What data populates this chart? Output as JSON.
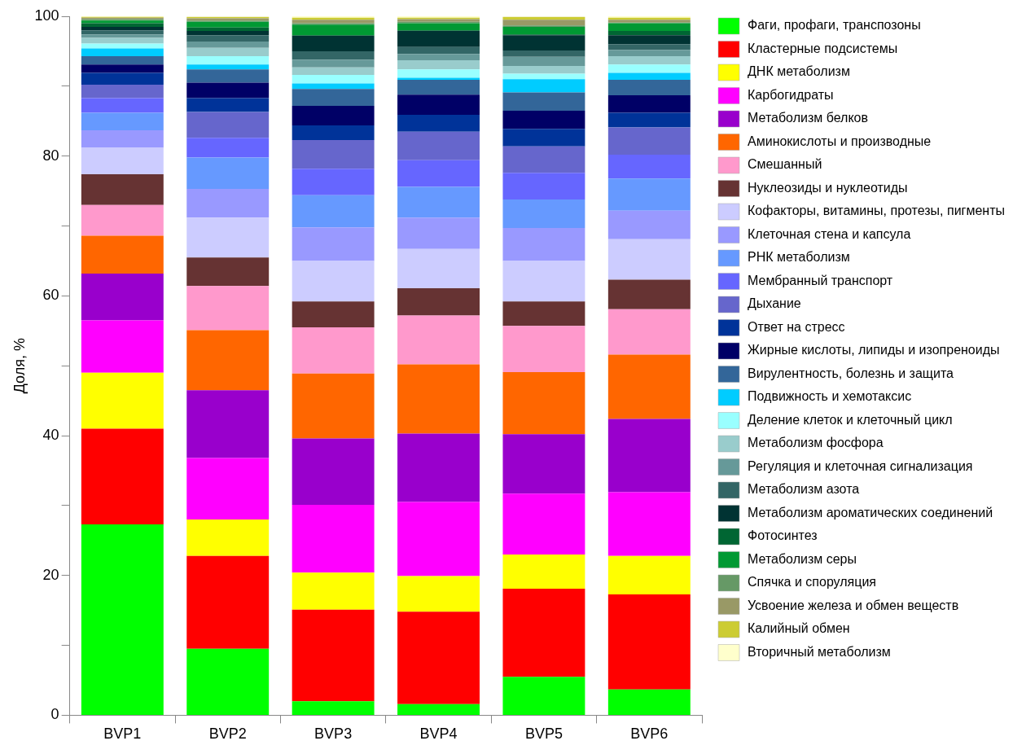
{
  "chart_data": {
    "type": "bar",
    "stacked": true,
    "ylabel": "Доля, %",
    "categories": [
      "BVP1",
      "BVP2",
      "BVP3",
      "BVP4",
      "BVP5",
      "BVP6"
    ],
    "ylim": [
      0,
      100
    ],
    "yticks": [
      0,
      {
        "value": 10,
        "label": null
      },
      20,
      {
        "value": 30,
        "label": null
      },
      40,
      {
        "value": 50,
        "label": null
      },
      60,
      {
        "value": 70,
        "label": null
      },
      80,
      {
        "value": 90,
        "label": null
      },
      100
    ],
    "grid": false,
    "legend": "right",
    "series": [
      {
        "name": "Фаги, профаги, транспозоны",
        "color": "#00ff00",
        "values": [
          27.3,
          9.5,
          2.0,
          1.6,
          5.5,
          3.7
        ]
      },
      {
        "name": "Кластерные подсистемы",
        "color": "#ff0000",
        "values": [
          13.7,
          13.3,
          13.1,
          13.2,
          12.6,
          13.6
        ]
      },
      {
        "name": "ДНК метаболизм",
        "color": "#ffff00",
        "values": [
          8.0,
          5.2,
          5.3,
          5.1,
          4.9,
          5.5
        ]
      },
      {
        "name": "Карбогидраты",
        "color": "#ff00ff",
        "values": [
          7.5,
          8.8,
          9.7,
          10.6,
          8.7,
          9.1
        ]
      },
      {
        "name": "Метаболизм белков",
        "color": "#9900cc",
        "values": [
          6.7,
          9.7,
          9.5,
          9.8,
          8.5,
          10.5
        ]
      },
      {
        "name": "Аминокислоты и производные",
        "color": "#ff6600",
        "values": [
          5.4,
          8.6,
          9.3,
          9.9,
          8.9,
          9.2
        ]
      },
      {
        "name": "Смешанный",
        "color": "#ff99cc",
        "values": [
          4.4,
          6.3,
          6.6,
          7.0,
          6.6,
          6.5
        ]
      },
      {
        "name": "Нуклеозиды и нуклеотиды",
        "color": "#663333",
        "values": [
          4.4,
          4.1,
          3.7,
          3.9,
          3.5,
          4.2
        ]
      },
      {
        "name": "Кофакторы, витамины, протезы, пигменты",
        "color": "#ccccff",
        "values": [
          3.8,
          5.7,
          5.8,
          5.6,
          5.8,
          5.8
        ]
      },
      {
        "name": "Клеточная стена и капсула",
        "color": "#9999ff",
        "values": [
          2.5,
          4.1,
          4.8,
          4.5,
          4.7,
          4.1
        ]
      },
      {
        "name": "РНК метаболизм",
        "color": "#6699ff",
        "values": [
          2.5,
          4.5,
          4.6,
          4.4,
          4.1,
          4.6
        ]
      },
      {
        "name": "Мембранный транспорт",
        "color": "#6666ff",
        "values": [
          2.1,
          2.8,
          3.8,
          3.8,
          3.8,
          3.4
        ]
      },
      {
        "name": "Дыхание",
        "color": "#6666cc",
        "values": [
          1.9,
          3.7,
          4.1,
          4.1,
          3.8,
          3.9
        ]
      },
      {
        "name": "Ответ на стресс",
        "color": "#003399",
        "values": [
          1.7,
          2.0,
          2.1,
          2.4,
          2.5,
          2.1
        ]
      },
      {
        "name": "Жирные кислоты, липиды и изопреноиды",
        "color": "#000066",
        "values": [
          1.2,
          2.2,
          2.8,
          2.9,
          2.6,
          2.5
        ]
      },
      {
        "name": "Вирулентность, болезнь и защита",
        "color": "#336699",
        "values": [
          1.2,
          1.9,
          2.4,
          2.1,
          2.6,
          2.2
        ]
      },
      {
        "name": "Подвижность и хемотаксис",
        "color": "#00ccff",
        "values": [
          1.1,
          0.7,
          0.8,
          0.3,
          1.9,
          1.0
        ]
      },
      {
        "name": "Деление клеток и клеточный цикл",
        "color": "#99ffff",
        "values": [
          0.7,
          1.2,
          1.2,
          1.2,
          0.8,
          1.2
        ]
      },
      {
        "name": "Метаболизм фосфора",
        "color": "#99cccc",
        "values": [
          0.8,
          1.2,
          1.1,
          1.3,
          1.1,
          1.2
        ]
      },
      {
        "name": "Регуляция и клеточная сигнализация",
        "color": "#669999",
        "values": [
          0.5,
          0.9,
          1.1,
          0.9,
          1.3,
          0.9
        ]
      },
      {
        "name": "Метаболизм азота",
        "color": "#336666",
        "values": [
          0.6,
          0.9,
          1.2,
          1.0,
          0.9,
          0.8
        ]
      },
      {
        "name": "Метаболизм ароматических соединений",
        "color": "#003333",
        "values": [
          0.5,
          0.6,
          2.2,
          2.3,
          2.2,
          1.3
        ]
      },
      {
        "name": "Фотосинтез",
        "color": "#006633",
        "values": [
          0.5,
          0.5,
          0.1,
          0.1,
          0.1,
          0.6
        ]
      },
      {
        "name": "Метаболизм серы",
        "color": "#009933",
        "values": [
          0.4,
          0.8,
          1.5,
          1.0,
          1.1,
          1.1
        ]
      },
      {
        "name": "Спячка и споруляция",
        "color": "#669966",
        "values": [
          0.2,
          0.2,
          0.2,
          0.2,
          0.2,
          0.1
        ]
      },
      {
        "name": "Усвоение железа и обмен веществ",
        "color": "#999966",
        "values": [
          0.2,
          0.3,
          0.5,
          0.4,
          0.8,
          0.4
        ]
      },
      {
        "name": "Калийный обмен",
        "color": "#cccc33",
        "values": [
          0.1,
          0.2,
          0.3,
          0.2,
          0.4,
          0.3
        ]
      },
      {
        "name": "Вторичный метаболизм",
        "color": "#ffffcc",
        "values": [
          0.1,
          null,
          0.2,
          0.2,
          null,
          0.2
        ]
      }
    ]
  }
}
